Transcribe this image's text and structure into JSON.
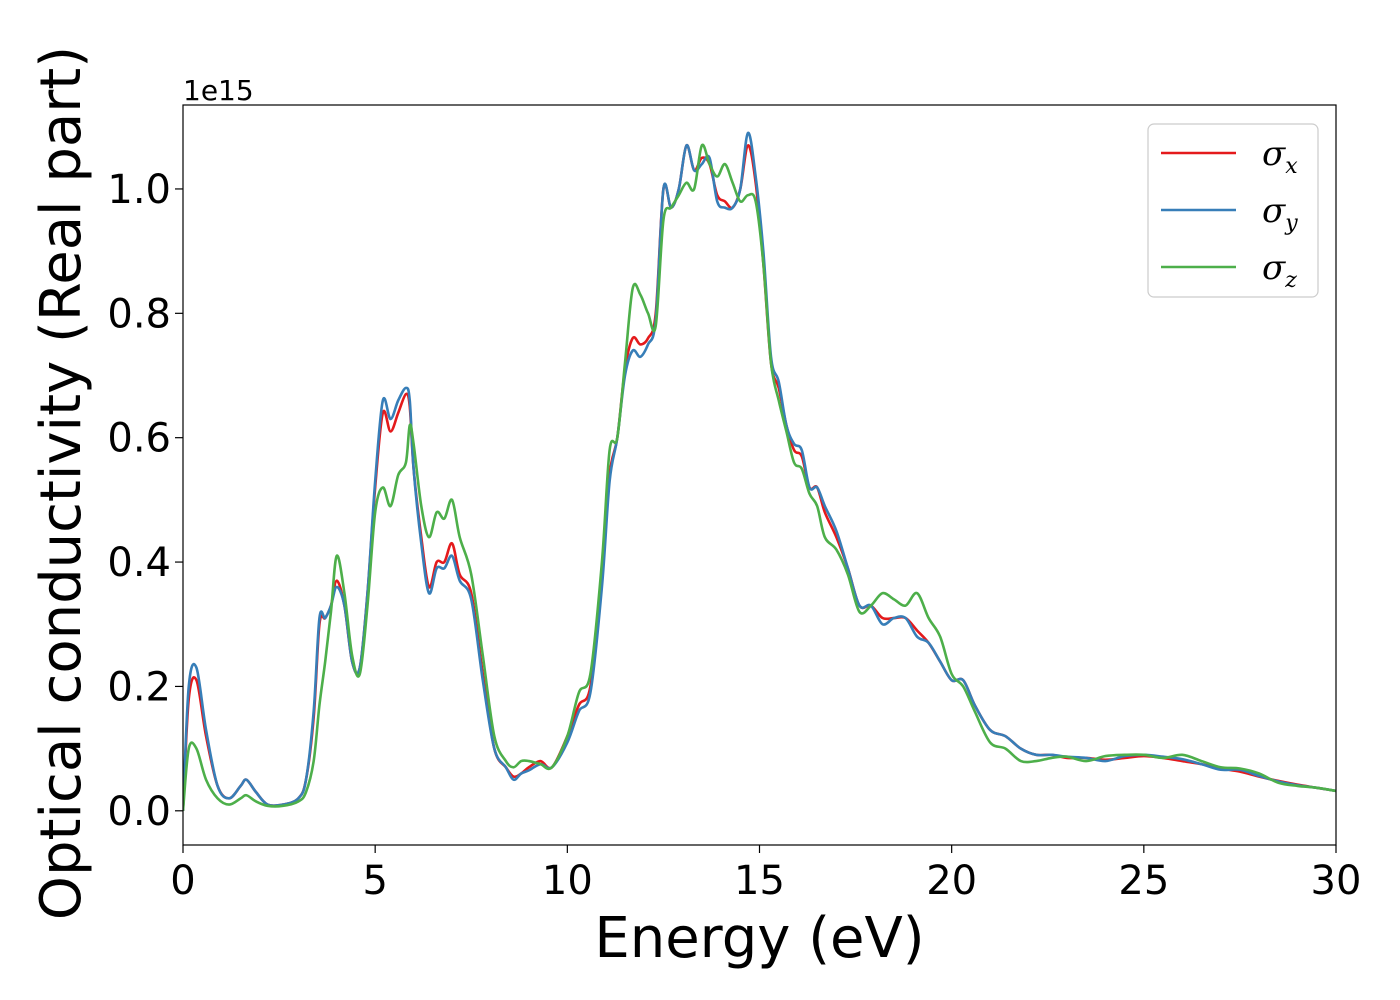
{
  "chart_data": {
    "type": "line",
    "xlabel": "Energy (eV)",
    "ylabel": "Optical conductivity (Real part)",
    "y_offset_label": "1e15",
    "xlim": [
      0,
      30
    ],
    "ylim": [
      -0.055,
      1.135
    ],
    "x_ticks": [
      0,
      5,
      10,
      15,
      20,
      25,
      30
    ],
    "x_tick_labels": [
      "0",
      "5",
      "10",
      "15",
      "20",
      "25",
      "30"
    ],
    "y_ticks": [
      0.0,
      0.2,
      0.4,
      0.6,
      0.8,
      1.0
    ],
    "y_tick_labels": [
      "0.0",
      "0.2",
      "0.4",
      "0.6",
      "0.8",
      "1.0"
    ],
    "grid": false,
    "legend_position": "top-right",
    "series": [
      {
        "name": "σx",
        "symbol": "σ",
        "subscript": "x",
        "color": "#e41a1c",
        "x": [
          0,
          0.15,
          0.35,
          0.6,
          0.9,
          1.2,
          1.5,
          1.65,
          1.9,
          2.2,
          2.6,
          3.0,
          3.2,
          3.4,
          3.55,
          3.7,
          3.85,
          4.0,
          4.2,
          4.4,
          4.6,
          4.8,
          5.0,
          5.2,
          5.4,
          5.6,
          5.8,
          5.9,
          6.0,
          6.2,
          6.4,
          6.6,
          6.8,
          7.0,
          7.2,
          7.5,
          7.8,
          8.1,
          8.4,
          8.6,
          8.8,
          9.0,
          9.3,
          9.6,
          10.0,
          10.3,
          10.6,
          10.9,
          11.1,
          11.3,
          11.5,
          11.7,
          11.9,
          12.1,
          12.3,
          12.5,
          12.7,
          12.9,
          13.1,
          13.3,
          13.5,
          13.7,
          13.9,
          14.1,
          14.3,
          14.5,
          14.7,
          14.9,
          15.1,
          15.3,
          15.5,
          15.7,
          15.9,
          16.1,
          16.3,
          16.5,
          16.7,
          17.0,
          17.3,
          17.6,
          17.9,
          18.2,
          18.5,
          18.8,
          19.1,
          19.4,
          19.7,
          20.0,
          20.3,
          20.6,
          21.0,
          21.4,
          21.8,
          22.2,
          22.6,
          23.0,
          23.5,
          24.0,
          24.5,
          25.0,
          25.5,
          26.0,
          26.5,
          27.0,
          27.5,
          28.0,
          28.5,
          29.0,
          29.5,
          30.0
        ],
        "y": [
          0.0,
          0.18,
          0.21,
          0.12,
          0.04,
          0.02,
          0.04,
          0.05,
          0.03,
          0.01,
          0.01,
          0.02,
          0.05,
          0.15,
          0.3,
          0.31,
          0.33,
          0.37,
          0.33,
          0.24,
          0.23,
          0.35,
          0.52,
          0.64,
          0.61,
          0.64,
          0.67,
          0.65,
          0.55,
          0.44,
          0.36,
          0.4,
          0.4,
          0.43,
          0.38,
          0.35,
          0.22,
          0.1,
          0.07,
          0.055,
          0.06,
          0.07,
          0.08,
          0.07,
          0.12,
          0.17,
          0.2,
          0.37,
          0.54,
          0.6,
          0.71,
          0.76,
          0.75,
          0.76,
          0.8,
          1.0,
          0.97,
          1.0,
          1.07,
          1.03,
          1.05,
          1.04,
          0.99,
          0.98,
          0.97,
          1.0,
          1.07,
          1.01,
          0.88,
          0.72,
          0.68,
          0.62,
          0.58,
          0.57,
          0.52,
          0.52,
          0.48,
          0.44,
          0.39,
          0.33,
          0.33,
          0.31,
          0.31,
          0.31,
          0.29,
          0.27,
          0.24,
          0.21,
          0.21,
          0.17,
          0.13,
          0.12,
          0.1,
          0.09,
          0.09,
          0.085,
          0.085,
          0.082,
          0.085,
          0.088,
          0.085,
          0.08,
          0.075,
          0.068,
          0.063,
          0.055,
          0.048,
          0.042,
          0.037,
          0.032
        ]
      },
      {
        "name": "σy",
        "symbol": "σ",
        "subscript": "y",
        "color": "#377eb8",
        "x": [
          0,
          0.15,
          0.35,
          0.6,
          0.9,
          1.2,
          1.5,
          1.65,
          1.9,
          2.2,
          2.6,
          3.0,
          3.2,
          3.4,
          3.55,
          3.7,
          3.85,
          4.0,
          4.2,
          4.4,
          4.6,
          4.8,
          5.0,
          5.2,
          5.4,
          5.6,
          5.8,
          5.9,
          6.0,
          6.2,
          6.4,
          6.6,
          6.8,
          7.0,
          7.2,
          7.5,
          7.8,
          8.1,
          8.4,
          8.6,
          8.8,
          9.0,
          9.3,
          9.6,
          10.0,
          10.3,
          10.6,
          10.9,
          11.1,
          11.3,
          11.5,
          11.7,
          11.9,
          12.1,
          12.3,
          12.5,
          12.7,
          12.9,
          13.1,
          13.3,
          13.5,
          13.7,
          13.9,
          14.1,
          14.3,
          14.5,
          14.7,
          14.9,
          15.1,
          15.3,
          15.5,
          15.7,
          15.9,
          16.1,
          16.3,
          16.5,
          16.7,
          17.0,
          17.3,
          17.6,
          17.9,
          18.2,
          18.5,
          18.8,
          19.1,
          19.4,
          19.7,
          20.0,
          20.3,
          20.6,
          21.0,
          21.4,
          21.8,
          22.2,
          22.6,
          23.0,
          23.5,
          24.0,
          24.5,
          25.0,
          25.5,
          26.0,
          26.5,
          27.0,
          27.5,
          28.0,
          28.5,
          29.0,
          29.5,
          30.0
        ],
        "y": [
          0.0,
          0.2,
          0.23,
          0.13,
          0.04,
          0.02,
          0.04,
          0.05,
          0.03,
          0.01,
          0.01,
          0.02,
          0.05,
          0.16,
          0.31,
          0.31,
          0.33,
          0.36,
          0.33,
          0.24,
          0.23,
          0.35,
          0.53,
          0.66,
          0.63,
          0.66,
          0.68,
          0.66,
          0.55,
          0.43,
          0.35,
          0.39,
          0.39,
          0.41,
          0.37,
          0.34,
          0.21,
          0.1,
          0.07,
          0.05,
          0.06,
          0.065,
          0.075,
          0.07,
          0.11,
          0.16,
          0.19,
          0.36,
          0.53,
          0.6,
          0.7,
          0.74,
          0.73,
          0.75,
          0.79,
          1.0,
          0.97,
          1.0,
          1.07,
          1.03,
          1.04,
          1.05,
          0.98,
          0.97,
          0.97,
          1.0,
          1.09,
          1.02,
          0.9,
          0.73,
          0.69,
          0.62,
          0.59,
          0.58,
          0.52,
          0.52,
          0.49,
          0.45,
          0.39,
          0.33,
          0.33,
          0.3,
          0.31,
          0.31,
          0.28,
          0.27,
          0.24,
          0.21,
          0.21,
          0.17,
          0.13,
          0.12,
          0.1,
          0.09,
          0.09,
          0.087,
          0.085,
          0.08,
          0.088,
          0.09,
          0.087,
          0.083,
          0.075,
          0.066,
          0.066,
          0.056,
          0.047,
          0.041,
          0.037,
          0.032
        ]
      },
      {
        "name": "σz",
        "symbol": "σ",
        "subscript": "z",
        "color": "#4daf4a",
        "x": [
          0,
          0.15,
          0.35,
          0.6,
          0.9,
          1.2,
          1.5,
          1.65,
          1.9,
          2.2,
          2.6,
          3.0,
          3.2,
          3.4,
          3.55,
          3.7,
          3.85,
          4.0,
          4.2,
          4.4,
          4.6,
          4.8,
          5.0,
          5.2,
          5.4,
          5.6,
          5.8,
          5.9,
          6.0,
          6.2,
          6.4,
          6.6,
          6.8,
          7.0,
          7.2,
          7.5,
          7.8,
          8.1,
          8.4,
          8.6,
          8.8,
          9.0,
          9.3,
          9.6,
          10.0,
          10.3,
          10.6,
          10.9,
          11.1,
          11.3,
          11.5,
          11.7,
          11.9,
          12.1,
          12.3,
          12.5,
          12.7,
          12.9,
          13.1,
          13.3,
          13.5,
          13.7,
          13.9,
          14.1,
          14.3,
          14.5,
          14.7,
          14.9,
          15.1,
          15.3,
          15.5,
          15.7,
          15.9,
          16.1,
          16.3,
          16.5,
          16.7,
          17.0,
          17.3,
          17.6,
          17.9,
          18.2,
          18.5,
          18.8,
          19.1,
          19.4,
          19.7,
          20.0,
          20.3,
          20.6,
          21.0,
          21.4,
          21.8,
          22.2,
          22.6,
          23.0,
          23.5,
          24.0,
          24.5,
          25.0,
          25.5,
          26.0,
          26.5,
          27.0,
          27.5,
          28.0,
          28.5,
          29.0,
          29.5,
          30.0
        ],
        "y": [
          0.0,
          0.1,
          0.1,
          0.05,
          0.02,
          0.01,
          0.02,
          0.025,
          0.015,
          0.008,
          0.008,
          0.015,
          0.03,
          0.08,
          0.17,
          0.24,
          0.32,
          0.41,
          0.35,
          0.25,
          0.22,
          0.33,
          0.48,
          0.52,
          0.49,
          0.54,
          0.56,
          0.62,
          0.59,
          0.49,
          0.44,
          0.48,
          0.47,
          0.5,
          0.44,
          0.38,
          0.25,
          0.12,
          0.08,
          0.07,
          0.08,
          0.08,
          0.075,
          0.07,
          0.12,
          0.19,
          0.22,
          0.4,
          0.58,
          0.6,
          0.72,
          0.84,
          0.83,
          0.8,
          0.78,
          0.95,
          0.97,
          0.99,
          1.01,
          1.0,
          1.07,
          1.04,
          1.02,
          1.04,
          1.01,
          0.98,
          0.99,
          0.98,
          0.88,
          0.72,
          0.66,
          0.61,
          0.56,
          0.55,
          0.51,
          0.49,
          0.44,
          0.42,
          0.38,
          0.32,
          0.33,
          0.35,
          0.34,
          0.33,
          0.35,
          0.31,
          0.28,
          0.22,
          0.2,
          0.16,
          0.11,
          0.1,
          0.08,
          0.08,
          0.085,
          0.087,
          0.08,
          0.088,
          0.09,
          0.09,
          0.085,
          0.09,
          0.08,
          0.07,
          0.068,
          0.06,
          0.045,
          0.04,
          0.037,
          0.032
        ]
      }
    ]
  }
}
